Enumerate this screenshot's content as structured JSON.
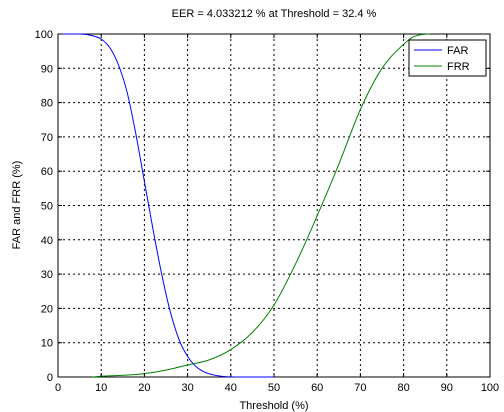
{
  "chart_data": {
    "type": "line",
    "title": "EER = 4.033212 % at Threshold = 32.4 %",
    "xlabel": "Threshold (%)",
    "ylabel": "FAR and FRR (%)",
    "xlim": [
      0,
      100
    ],
    "ylim": [
      0,
      100
    ],
    "xticks": [
      0,
      10,
      20,
      30,
      40,
      50,
      60,
      70,
      80,
      90,
      100
    ],
    "yticks": [
      0,
      10,
      20,
      30,
      40,
      50,
      60,
      70,
      80,
      90,
      100
    ],
    "grid": true,
    "legend_position": "top-right",
    "series": [
      {
        "name": "FAR",
        "color": "#0000ff",
        "x": [
          0,
          5,
          8,
          10,
          12,
          14,
          16,
          18,
          20,
          22,
          24,
          26,
          28,
          30,
          32,
          34,
          36,
          38,
          40,
          45,
          50
        ],
        "y": [
          100,
          100,
          99.5,
          98.5,
          96,
          91,
          83,
          71,
          57,
          43,
          30,
          19,
          11,
          6,
          3,
          1.4,
          0.6,
          0.2,
          0.05,
          0,
          0
        ]
      },
      {
        "name": "FRR",
        "color": "#008000",
        "x": [
          8,
          10,
          15,
          20,
          25,
          30,
          35,
          40,
          45,
          50,
          55,
          60,
          65,
          70,
          75,
          80,
          82,
          84,
          86
        ],
        "y": [
          0,
          0.2,
          0.5,
          1,
          2,
          3.5,
          5,
          8,
          13,
          21,
          33,
          47,
          62,
          78,
          90,
          97,
          99,
          99.8,
          100
        ]
      }
    ]
  }
}
